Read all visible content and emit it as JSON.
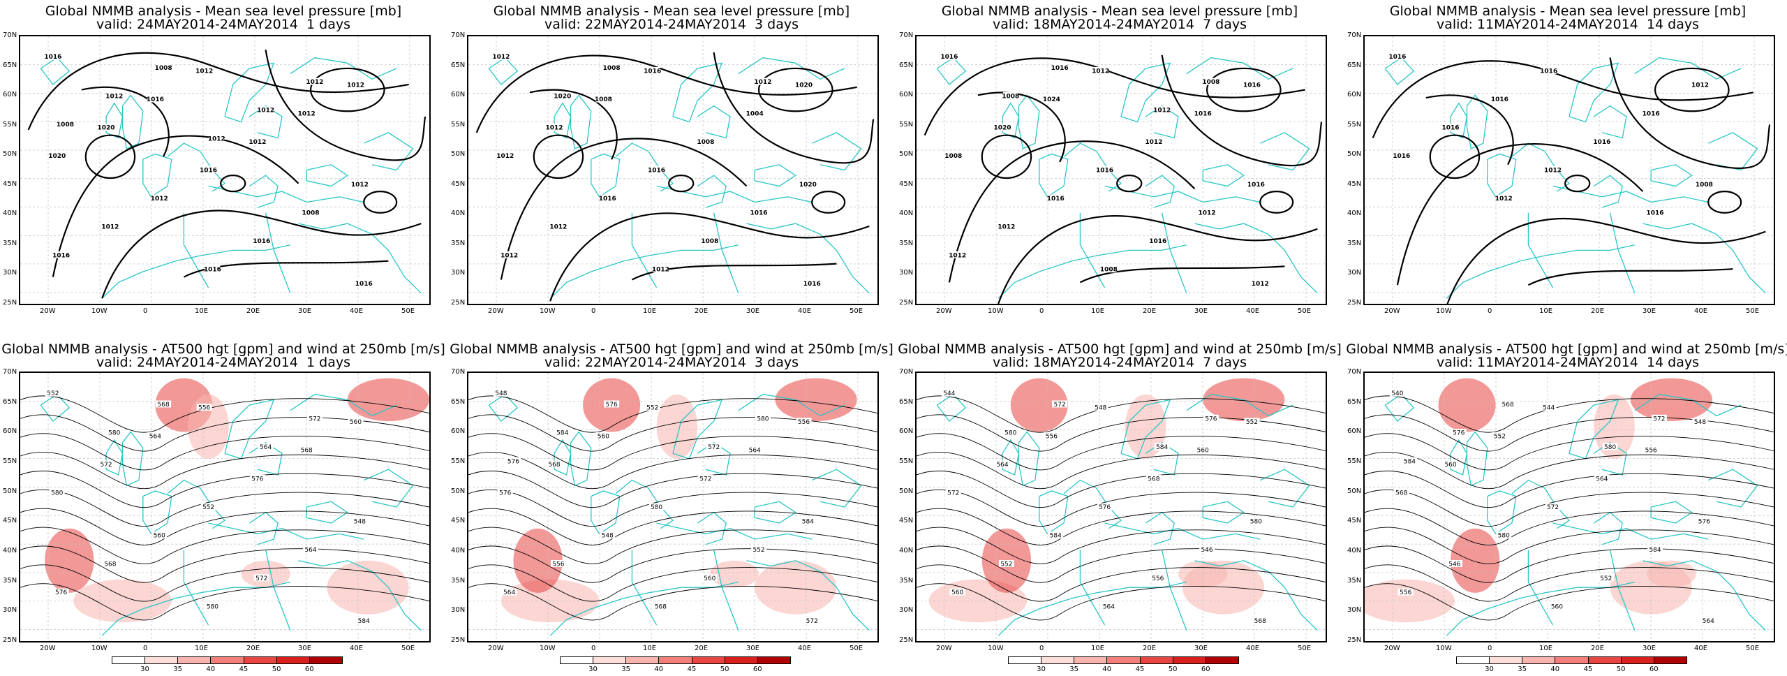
{
  "row1": [
    {
      "title_line1": "Global NMMB analysis - Mean sea level pressure [mb]",
      "title_line2": "valid: 24MAY2014-24MAY2014  1 days",
      "labels": [
        "1016",
        "1012",
        "1012",
        "1016",
        "1012",
        "1020",
        "1012",
        "1020",
        "1016",
        "1012",
        "1012",
        "1008",
        "1012",
        "1016",
        "1016",
        "1016",
        "1016",
        "1008",
        "1012",
        "1012",
        "1012",
        "1008",
        "1012"
      ]
    },
    {
      "title_line1": "Global NMMB analysis - Mean sea level pressure [mb]",
      "title_line2": "valid: 22MAY2014-24MAY2014  3 days",
      "labels": [
        "1012",
        "1016",
        "1020",
        "1008",
        "1004",
        "1012",
        "1008",
        "1012",
        "1016",
        "1020",
        "1016",
        "1016",
        "1012",
        "1008",
        "1012",
        "1012",
        "1016",
        "1008",
        "1012",
        "1020"
      ]
    },
    {
      "title_line1": "Global NMMB analysis - Mean sea level pressure [mb]",
      "title_line2": "valid: 18MAY2014-24MAY2014  7 days",
      "labels": [
        "1016",
        "1012",
        "1016",
        "1024",
        "1016",
        "1020",
        "1012",
        "1008",
        "1016",
        "1016",
        "1016",
        "1012",
        "1012",
        "1016",
        "1012",
        "1008",
        "1012",
        "1016",
        "1008",
        "1008",
        "1012"
      ]
    },
    {
      "title_line1": "Global NMMB analysis - Mean sea level pressure [mb]",
      "title_line2": "valid: 11MAY2014-24MAY2014  14 days",
      "labels": [
        "1016",
        "1016",
        "1012",
        "1016",
        "1016",
        "1016",
        "1016",
        "1016",
        "1012",
        "1008",
        "1012",
        "1016"
      ]
    }
  ],
  "row2": [
    {
      "title_line1": "Global NMMB analysis - AT500 hgt [gpm] and wind at 250mb [m/s]",
      "title_line2": "valid: 24MAY2014-24MAY2014  1 days",
      "labels": [
        "552",
        "556",
        "560",
        "564",
        "568",
        "572",
        "576",
        "580",
        "552",
        "548",
        "560",
        "564",
        "568",
        "572",
        "576",
        "580",
        "584",
        "568",
        "572",
        "580",
        "564"
      ]
    },
    {
      "title_line1": "Global NMMB analysis - AT500 hgt [gpm] and wind at 250mb [m/s]",
      "title_line2": "valid: 22MAY2014-24MAY2014  3 days",
      "labels": [
        "548",
        "552",
        "556",
        "560",
        "564",
        "568",
        "572",
        "576",
        "580",
        "584",
        "548",
        "552",
        "556",
        "560",
        "564",
        "568",
        "572",
        "576",
        "580",
        "584",
        "572",
        "576"
      ]
    },
    {
      "title_line1": "Global NMMB analysis - AT500 hgt [gpm] and wind at 250mb [m/s]",
      "title_line2": "valid: 18MAY2014-24MAY2014  7 days",
      "labels": [
        "544",
        "548",
        "552",
        "556",
        "560",
        "564",
        "568",
        "572",
        "576",
        "580",
        "584",
        "546",
        "552",
        "556",
        "560",
        "564",
        "568",
        "572",
        "576",
        "580",
        "584"
      ]
    },
    {
      "title_line1": "Global NMMB analysis - AT500 hgt [gpm] and wind at 250mb [m/s]",
      "title_line2": "valid: 11MAY2014-24MAY2014  14 days",
      "labels": [
        "540",
        "544",
        "548",
        "552",
        "556",
        "560",
        "564",
        "568",
        "572",
        "576",
        "580",
        "584",
        "546",
        "552",
        "556",
        "560",
        "564",
        "568",
        "572",
        "576",
        "580",
        "584"
      ]
    }
  ],
  "axes": {
    "lat_labels": [
      "70N",
      "65N",
      "60N",
      "55N",
      "50N",
      "45N",
      "40N",
      "35N",
      "30N",
      "25N"
    ],
    "lon_labels": [
      "20W",
      "10W",
      "0",
      "10E",
      "20E",
      "30E",
      "40E",
      "50E"
    ]
  },
  "colorbar": {
    "labels": [
      "30",
      "35",
      "40",
      "45",
      "50",
      "60"
    ],
    "colors": [
      "#ffffff",
      "#fde0dc",
      "#f8b4ae",
      "#f27f79",
      "#e84642",
      "#d8201c",
      "#b00000"
    ]
  },
  "colors": {
    "coastline": "#2ac6c6",
    "contour": "#000000",
    "grid": "#bfbfbf"
  }
}
